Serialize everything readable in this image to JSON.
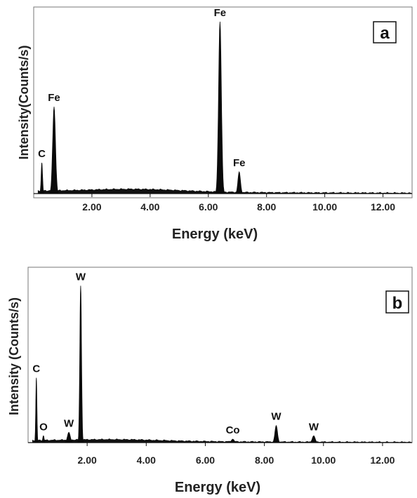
{
  "chart_data": [
    {
      "type": "area",
      "panel_label": "a",
      "xlabel": "Energy (keV)",
      "ylabel": "Intensity(Counts/s)",
      "xlim": [
        0.0,
        13.0
      ],
      "ylim": [
        0,
        100
      ],
      "x_ticks": [
        "2.00",
        "4.00",
        "6.00",
        "8.00",
        "10.00",
        "12.00"
      ],
      "x_tick_values": [
        2.0,
        4.0,
        6.0,
        8.0,
        10.0,
        12.0
      ],
      "y_ticks_shown": false,
      "grid": false,
      "peaks": [
        {
          "element": "C",
          "energy": 0.28,
          "intensity": 17,
          "width": 0.05
        },
        {
          "element": "Fe",
          "energy": 0.7,
          "intensity": 48,
          "width": 0.1
        },
        {
          "element": "Fe",
          "energy": 6.4,
          "intensity": 95,
          "width": 0.1
        },
        {
          "element": "Fe",
          "energy": 7.06,
          "intensity": 12,
          "width": 0.09
        }
      ],
      "background": {
        "level": 1.5,
        "hump_center": 3.5,
        "hump_height": 1.5
      }
    },
    {
      "type": "area",
      "panel_label": "b",
      "xlabel": "Energy (keV)",
      "ylabel": "Intensity (Counts/s)",
      "xlim": [
        0.0,
        13.0
      ],
      "ylim": [
        0,
        100
      ],
      "x_ticks": [
        "2.00",
        "4.00",
        "6.00",
        "8.00",
        "10.00",
        "12.00"
      ],
      "x_tick_values": [
        2.0,
        4.0,
        6.0,
        8.0,
        10.0,
        12.0
      ],
      "y_ticks_shown": false,
      "grid": false,
      "peaks": [
        {
          "element": "C",
          "energy": 0.28,
          "intensity": 38,
          "width": 0.04
        },
        {
          "element": "O",
          "energy": 0.52,
          "intensity": 4,
          "width": 0.05
        },
        {
          "element": "W",
          "energy": 1.38,
          "intensity": 6,
          "width": 0.1
        },
        {
          "element": "W",
          "energy": 1.78,
          "intensity": 92,
          "width": 0.06
        },
        {
          "element": "Co",
          "energy": 6.93,
          "intensity": 2,
          "width": 0.1
        },
        {
          "element": "W",
          "energy": 8.4,
          "intensity": 10,
          "width": 0.09
        },
        {
          "element": "W",
          "energy": 9.67,
          "intensity": 4,
          "width": 0.1
        }
      ],
      "background": {
        "level": 1.2,
        "hump_center": 3.0,
        "hump_height": 1.0
      }
    }
  ]
}
